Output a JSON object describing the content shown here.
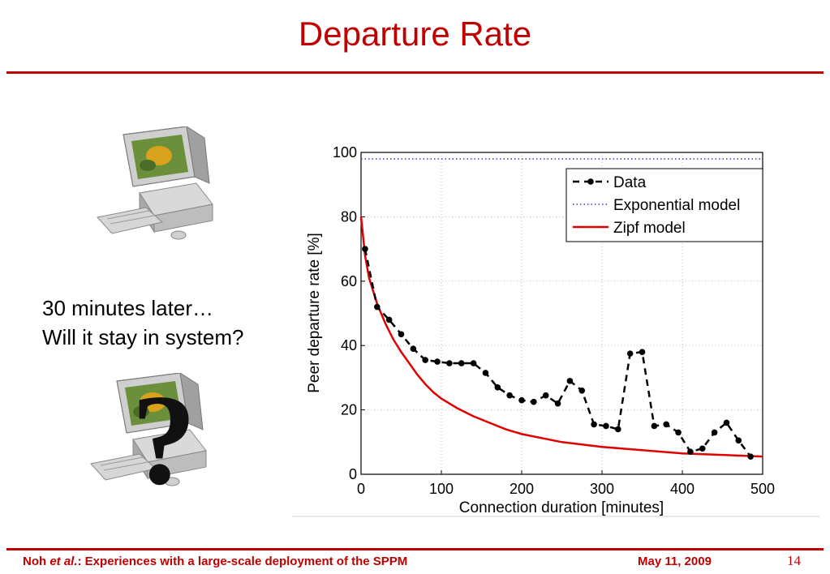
{
  "slide": {
    "title": "Departure Rate",
    "caption_line1": "30 minutes later…",
    "caption_line2": "Will it stay in system?",
    "question_mark": "?",
    "footer_author": "Noh ",
    "footer_etal": "et al.",
    "footer_rest": ": Experiences with a large-scale deployment of the SPPM",
    "footer_date": "May 11, 2009",
    "page_number": "14"
  },
  "colors": {
    "accent": "#c00000",
    "data_series": "#000000",
    "exponential_series": "#3333cc",
    "zipf_series": "#e00000"
  },
  "icons": [
    "computer-icon",
    "computer-question-icon"
  ],
  "chart_data": {
    "type": "line",
    "title": "",
    "xlabel": "Connection duration [minutes]",
    "ylabel": "Peer departure rate [%]",
    "xlim": [
      0,
      500
    ],
    "ylim": [
      0,
      100
    ],
    "xticks": [
      0,
      100,
      200,
      300,
      400,
      500
    ],
    "yticks": [
      0,
      20,
      40,
      60,
      80,
      100
    ],
    "grid": true,
    "legend_position": "top-right",
    "series": [
      {
        "name": "Data",
        "style": "dashed-markers",
        "x": [
          5,
          20,
          35,
          50,
          65,
          80,
          95,
          110,
          125,
          140,
          155,
          170,
          185,
          200,
          215,
          230,
          245,
          260,
          275,
          290,
          305,
          320,
          335,
          350,
          365,
          380,
          395,
          410,
          425,
          440,
          455,
          470,
          485
        ],
        "y": [
          70,
          52,
          48,
          43.5,
          39,
          35.5,
          35,
          34.5,
          34.5,
          34.5,
          31.5,
          27,
          24.5,
          23,
          22.5,
          24.5,
          22,
          29,
          26,
          15.5,
          15,
          14,
          37.5,
          38,
          15,
          15.5,
          13,
          7,
          8,
          13,
          16,
          10.5,
          5.5
        ]
      },
      {
        "name": "Exponential model",
        "style": "dotted",
        "x": [
          0,
          500
        ],
        "y": [
          98,
          98
        ]
      },
      {
        "name": "Zipf model",
        "style": "solid",
        "x": [
          0,
          5,
          10,
          20,
          30,
          40,
          50,
          60,
          70,
          80,
          90,
          100,
          120,
          140,
          160,
          180,
          200,
          250,
          300,
          350,
          400,
          450,
          500
        ],
        "y": [
          80,
          68,
          61,
          53,
          47,
          42,
          38,
          34.5,
          31,
          28,
          25.5,
          23.5,
          20.5,
          18,
          16,
          14,
          12.5,
          10,
          8.5,
          7.5,
          6.5,
          6,
          5.5
        ]
      }
    ]
  }
}
